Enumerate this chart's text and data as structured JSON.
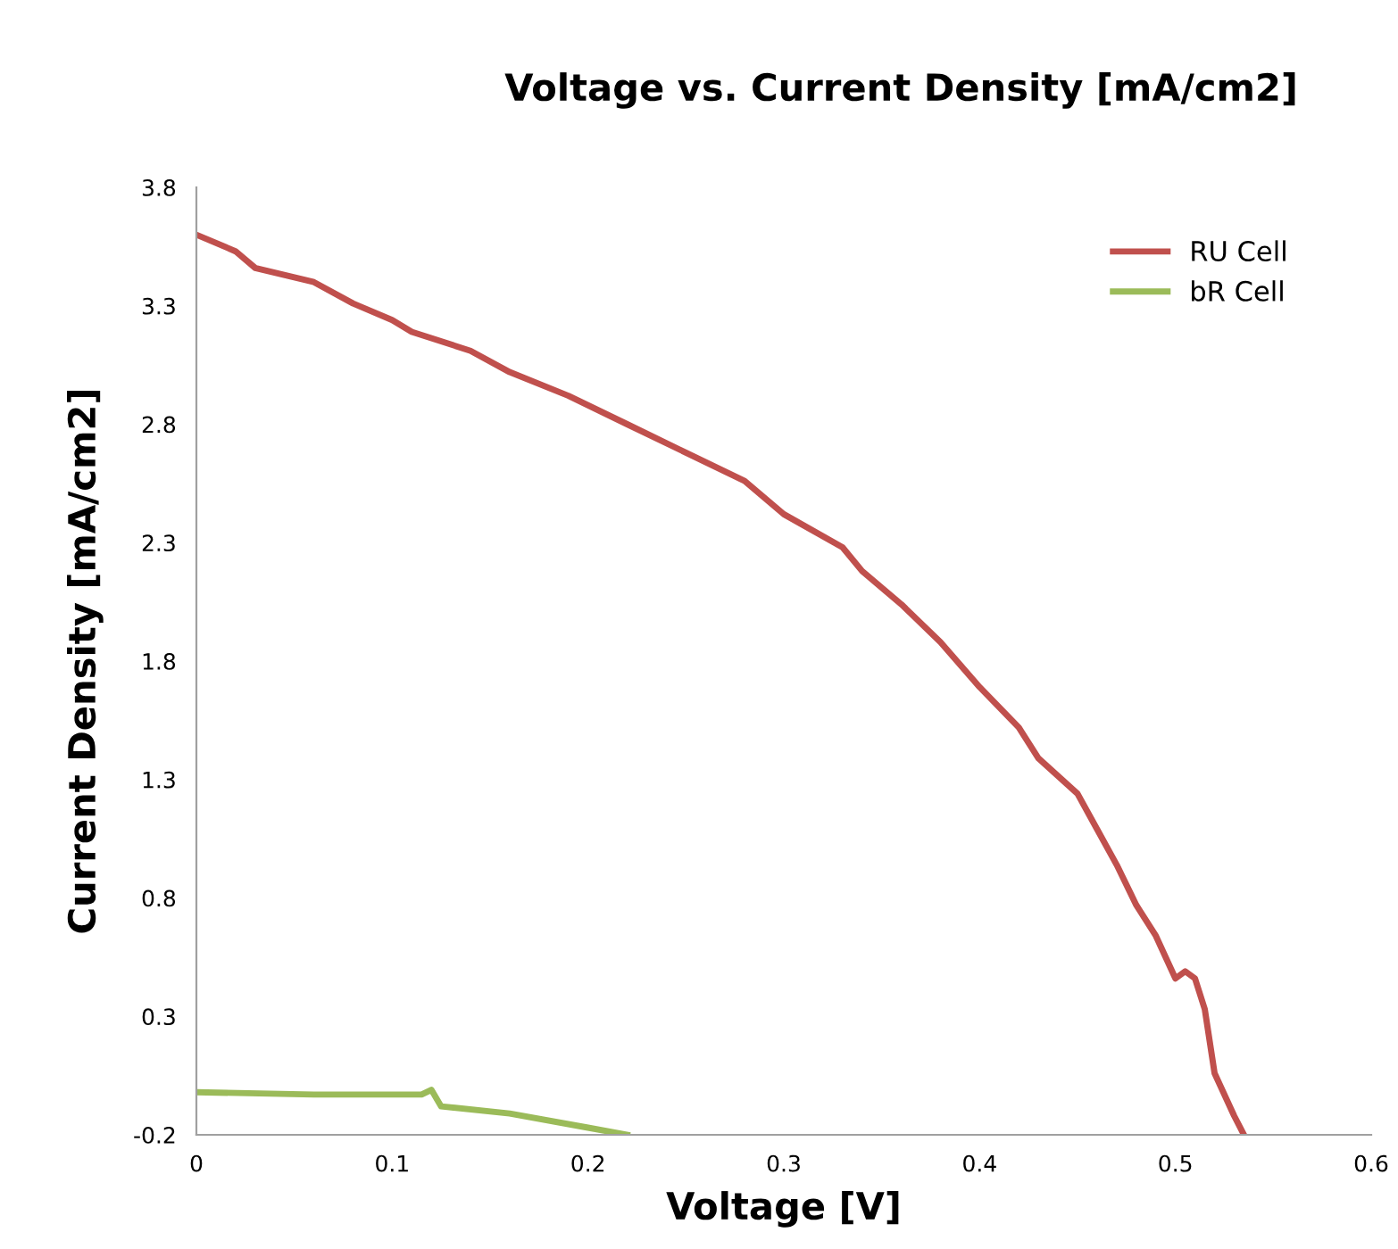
{
  "chart_data": {
    "type": "line",
    "title": "Voltage vs. Current Density [mA/cm2]",
    "xlabel": "Voltage [V]",
    "ylabel": "Current Density [mA/cm2]",
    "xlim": [
      0,
      0.6
    ],
    "xticks": [
      0,
      0.1,
      0.2,
      0.3,
      0.4,
      0.5,
      0.6
    ],
    "ylim": [
      -0.2,
      3.8
    ],
    "yticks": [
      {
        "value": -0.2,
        "label": "-0.2"
      },
      0.3,
      0.8,
      1.3,
      1.8,
      2.3,
      2.8,
      3.3,
      3.8
    ],
    "grid": false,
    "legend": "top right",
    "marker": "none",
    "line_style": "solid",
    "series": [
      {
        "name": "RU Cell",
        "color": "#c0504d",
        "x": [
          0,
          0.02,
          0.03,
          0.06,
          0.08,
          0.1,
          0.11,
          0.14,
          0.16,
          0.19,
          0.22,
          0.25,
          0.28,
          0.3,
          0.33,
          0.34,
          0.36,
          0.38,
          0.4,
          0.42,
          0.43,
          0.45,
          0.46,
          0.47,
          0.48,
          0.49,
          0.5,
          0.505,
          0.51,
          0.515,
          0.52,
          0.53,
          0.535
        ],
        "values": [
          3.6,
          3.53,
          3.46,
          3.4,
          3.31,
          3.24,
          3.19,
          3.11,
          3.02,
          2.92,
          2.8,
          2.68,
          2.56,
          2.42,
          2.28,
          2.18,
          2.04,
          1.88,
          1.69,
          1.52,
          1.39,
          1.24,
          1.09,
          0.94,
          0.77,
          0.64,
          0.46,
          0.49,
          0.46,
          0.33,
          0.06,
          -0.12,
          -0.2
        ]
      },
      {
        "name": "bR Cell",
        "color": "#9bbb59",
        "x": [
          0,
          0.06,
          0.115,
          0.12,
          0.125,
          0.16,
          0.2,
          0.22
        ],
        "values": [
          -0.02,
          -0.03,
          -0.03,
          -0.01,
          -0.08,
          -0.11,
          -0.17,
          -0.2
        ]
      }
    ]
  }
}
